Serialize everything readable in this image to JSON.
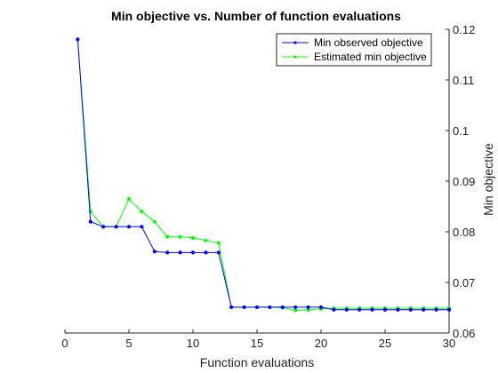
{
  "chart_data": {
    "type": "line",
    "title": "Min objective vs. Number of function evaluations",
    "xlabel": "Function evaluations",
    "ylabel": "Min objective",
    "xlim": [
      0,
      30
    ],
    "ylim": [
      0.06,
      0.12
    ],
    "xticks": [
      0,
      5,
      10,
      15,
      20,
      25,
      30
    ],
    "yticks": [
      0.06,
      0.07,
      0.08,
      0.09,
      0.1,
      0.11,
      0.12
    ],
    "ytick_labels": [
      "0.06",
      "0.07",
      "0.08",
      "0.09",
      "0.1",
      "0.11",
      "0.12"
    ],
    "y_axis_position": "right",
    "legend_position": "top-right",
    "grid": false,
    "x": [
      1,
      2,
      3,
      4,
      5,
      6,
      7,
      8,
      9,
      10,
      11,
      12,
      13,
      14,
      15,
      16,
      17,
      18,
      19,
      20,
      21,
      22,
      23,
      24,
      25,
      26,
      27,
      28,
      29,
      30
    ],
    "series": [
      {
        "name": "Min observed objective",
        "color": "#0000ff",
        "values": [
          0.118,
          0.082,
          0.081,
          0.081,
          0.081,
          0.081,
          0.0761,
          0.0759,
          0.0759,
          0.0759,
          0.0759,
          0.0759,
          0.0651,
          0.0651,
          0.0651,
          0.0651,
          0.0651,
          0.0651,
          0.0651,
          0.0651,
          0.0646,
          0.0646,
          0.0646,
          0.0646,
          0.0646,
          0.0646,
          0.0646,
          0.0646,
          0.0646,
          0.0646
        ]
      },
      {
        "name": "Estimated min objective",
        "color": "#00ff00",
        "values": [
          0.118,
          0.084,
          0.081,
          0.081,
          0.0865,
          0.084,
          0.082,
          0.079,
          0.079,
          0.0788,
          0.0783,
          0.0778,
          0.0651,
          0.0651,
          0.0651,
          0.0651,
          0.065,
          0.0645,
          0.0646,
          0.0648,
          0.0649,
          0.0649,
          0.0649,
          0.0649,
          0.0649,
          0.0649,
          0.0649,
          0.0649,
          0.0649,
          0.0649
        ]
      }
    ]
  }
}
